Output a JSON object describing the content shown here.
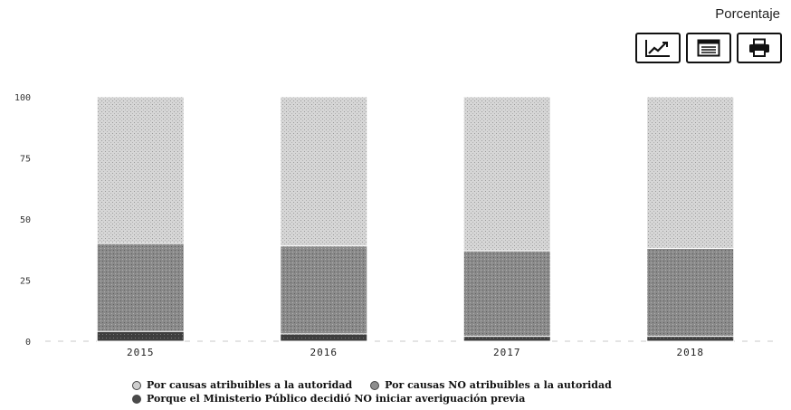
{
  "header": {
    "unit_label": "Porcentaje",
    "tools": [
      {
        "name": "line-chart-icon"
      },
      {
        "name": "table-view-icon"
      },
      {
        "name": "print-icon"
      }
    ]
  },
  "colors": {
    "autoridad": "#cfcfcf",
    "no_autoridad": "#8d8d8d",
    "ministerio": "#4a4a4a"
  },
  "chart_data": {
    "type": "bar",
    "stacked": true,
    "categories": [
      "2015",
      "2016",
      "2017",
      "2018"
    ],
    "series": [
      {
        "name": "Porque el Ministerio Público decidió NO iniciar averiguación previa",
        "values": [
          4,
          3,
          2,
          2
        ]
      },
      {
        "name": "Por causas NO atribuibles a la autoridad",
        "values": [
          36,
          36,
          35,
          36
        ]
      },
      {
        "name": "Por causas atribuibles a la autoridad",
        "values": [
          60,
          61,
          63,
          62
        ]
      }
    ],
    "yticks": [
      0,
      25,
      50,
      75,
      100
    ],
    "ylim": [
      0,
      100
    ],
    "legend_position": "bottom"
  }
}
